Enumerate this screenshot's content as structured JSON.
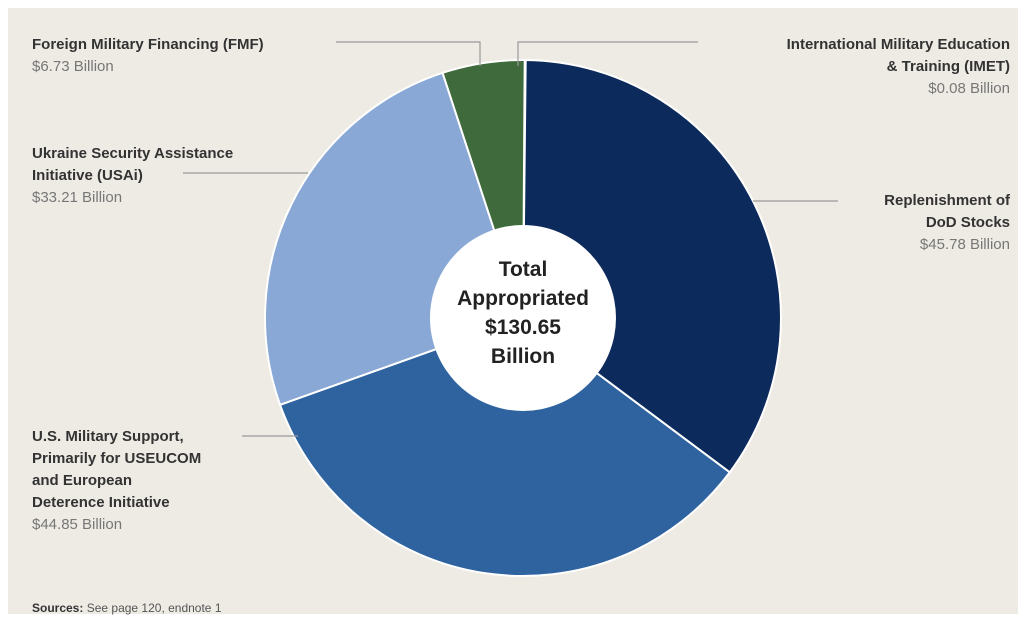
{
  "chart_data": {
    "type": "pie",
    "center_label": "Total\nAppropriated\n$130.65\nBillion",
    "slices": [
      {
        "label": "International Military Education\n& Training (IMET)",
        "value_label": "$0.08 Billion",
        "value": 0.08,
        "color": "#1e3d6b"
      },
      {
        "label": "Replenishment of\nDoD Stocks",
        "value_label": "$45.78 Billion",
        "value": 45.78,
        "color": "#0d2a5c"
      },
      {
        "label": "U.S. Military Support,\nPrimarily for USEUCOM\nand European\nDeterence Initiative",
        "value_label": "$44.85 Billion",
        "value": 44.85,
        "color": "#2e63a0"
      },
      {
        "label": "Ukraine Security Assistance\nInitiative (USAi)",
        "value_label": "$33.21 Billion",
        "value": 33.21,
        "color": "#8aa8d6"
      },
      {
        "label": "Foreign Military Financing (FMF)",
        "value_label": "$6.73 Billion",
        "value": 6.73,
        "color": "#3f6a3c"
      }
    ]
  },
  "sources": {
    "prefix": "Sources:",
    "text": "See page 120, endnote 1"
  }
}
